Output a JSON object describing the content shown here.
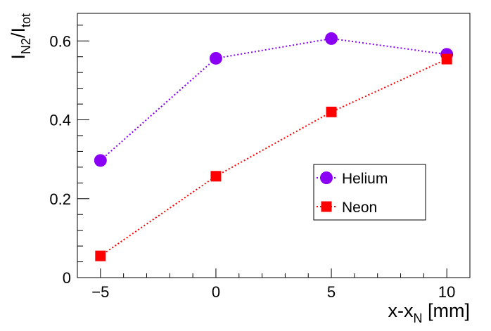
{
  "chart_data": {
    "type": "line",
    "xlabel": {
      "base": "x-x",
      "sub": "N",
      "tail": " [mm]"
    },
    "ylabel": {
      "base1": "I",
      "sub1": "N2",
      "slash": "/",
      "base2": "I",
      "sub2": "tot"
    },
    "xlim": [
      -6,
      11
    ],
    "ylim": [
      0,
      0.67
    ],
    "xticks": [
      {
        "value": -5,
        "label": "−5"
      },
      {
        "value": 0,
        "label": "0"
      },
      {
        "value": 5,
        "label": "5"
      },
      {
        "value": 10,
        "label": "10"
      }
    ],
    "yticks": [
      {
        "value": 0,
        "label": "0"
      },
      {
        "value": 0.2,
        "label": "0.2"
      },
      {
        "value": 0.4,
        "label": "0.4"
      },
      {
        "value": 0.6,
        "label": "0.6"
      }
    ],
    "grid": false,
    "legend_position": "right-middle",
    "series": [
      {
        "name": "Helium",
        "marker": "circle",
        "color": "#8a00f5",
        "x": [
          -5,
          0,
          5,
          10
        ],
        "y": [
          0.297,
          0.556,
          0.606,
          0.566
        ]
      },
      {
        "name": "Neon",
        "marker": "square",
        "color": "#ff0000",
        "x": [
          -5,
          0,
          5,
          10
        ],
        "y": [
          0.055,
          0.257,
          0.42,
          0.554
        ]
      }
    ]
  }
}
